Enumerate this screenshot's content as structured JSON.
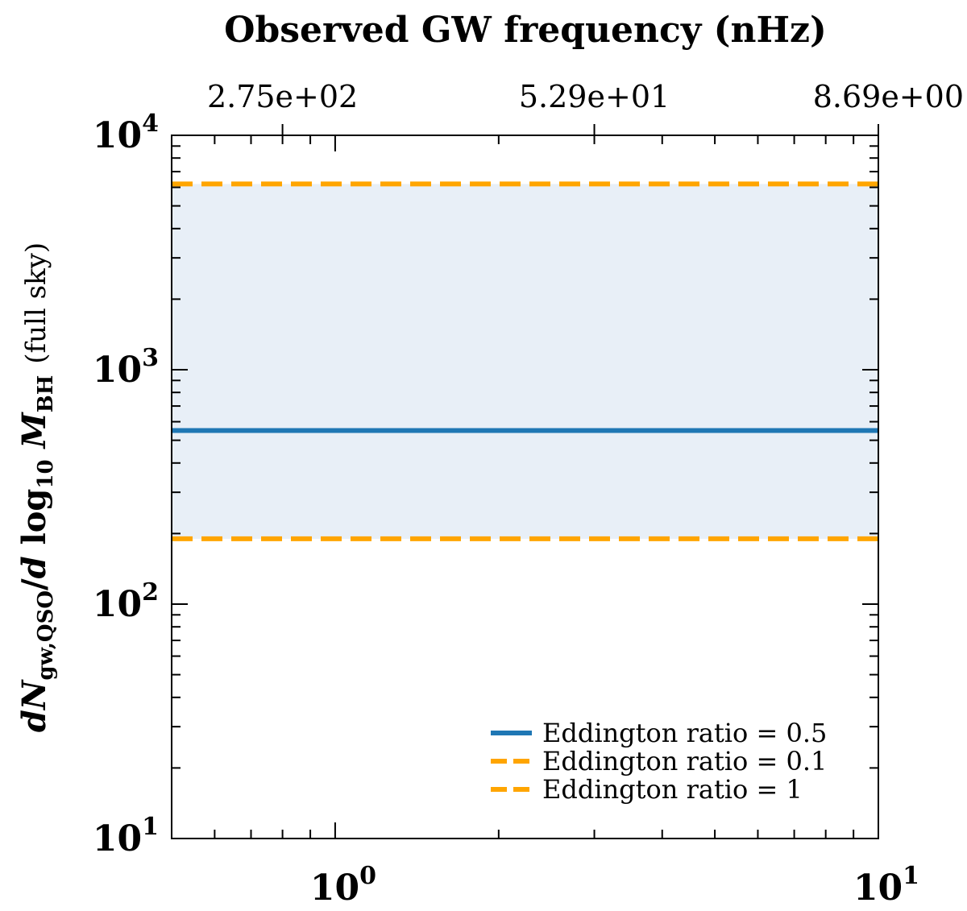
{
  "chart_data": {
    "type": "line",
    "title": "Observed GW frequency (nHz)",
    "xscale": "log",
    "yscale": "log",
    "xlim": [
      0.5,
      10
    ],
    "ylim": [
      10,
      10000
    ],
    "x_major_ticks": [
      {
        "value": 1,
        "base": "10",
        "exp": "0"
      },
      {
        "value": 10,
        "base": "10",
        "exp": "1"
      }
    ],
    "y_major_ticks": [
      {
        "value": 10,
        "base": "10",
        "exp": "1"
      },
      {
        "value": 100,
        "base": "10",
        "exp": "2"
      },
      {
        "value": 1000,
        "base": "10",
        "exp": "3"
      },
      {
        "value": 10000,
        "base": "10",
        "exp": "4"
      }
    ],
    "top_axis": {
      "ticks": [
        {
          "x": 0.8,
          "label": "2.75e+02"
        },
        {
          "x": 3.0,
          "label": "5.29e+01"
        },
        {
          "x": 10,
          "label": "8.69e+00"
        }
      ]
    },
    "ylabel": {
      "d1": "d",
      "N": "N",
      "sub": "gw,QSO",
      "slash": "/",
      "d2": "d",
      "log": "log",
      "logsub": "10",
      "M": "M",
      "msub": "BH",
      "suffix": "(full sky)"
    },
    "shaded_band": {
      "x": [
        0.5,
        10
      ],
      "lower": 190,
      "upper": 6200,
      "color": "#e8eff7"
    },
    "series": [
      {
        "name": "Eddington ratio = 0.5",
        "x": [
          0.5,
          10
        ],
        "y": [
          550,
          550
        ],
        "color": "#1f77b4",
        "style": "solid"
      },
      {
        "name": "Eddington ratio = 0.1",
        "x": [
          0.5,
          10
        ],
        "y": [
          6200,
          6200
        ],
        "color": "#ffa500",
        "style": "dashed"
      },
      {
        "name": "Eddington ratio = 1",
        "x": [
          0.5,
          10
        ],
        "y": [
          190,
          190
        ],
        "color": "#ffa500",
        "style": "dashed"
      }
    ],
    "legend": {
      "position": "lower-right"
    }
  }
}
